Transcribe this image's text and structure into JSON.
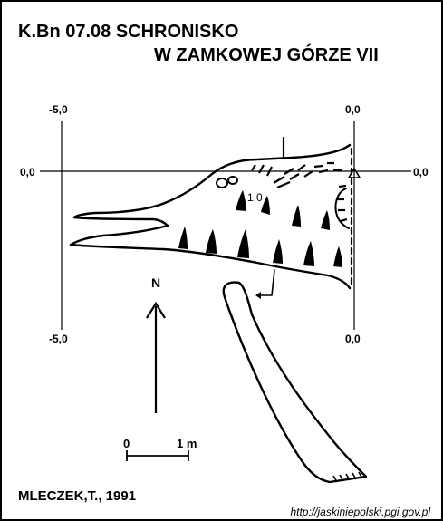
{
  "title": {
    "line1": "K.Bn 07.08  SCHRONISKO",
    "line2": "W ZAMKOWEJ GÓRZE VII"
  },
  "grid_labels": {
    "left_top": "-5,0",
    "left_bottom": "-5,0",
    "right_top": "0,0",
    "right_bottom": "0,0",
    "row_left": "0,0",
    "row_right": "0,0"
  },
  "height_label": "1,0",
  "north_label": "N",
  "scale": {
    "start": "0",
    "end": "1 m"
  },
  "credit": "MLECZEK,T., 1991",
  "source_url": "http://jaskiniepolski.pgi.gov.pl",
  "colors": {
    "ink": "#000000",
    "paper": "#ffffff"
  }
}
